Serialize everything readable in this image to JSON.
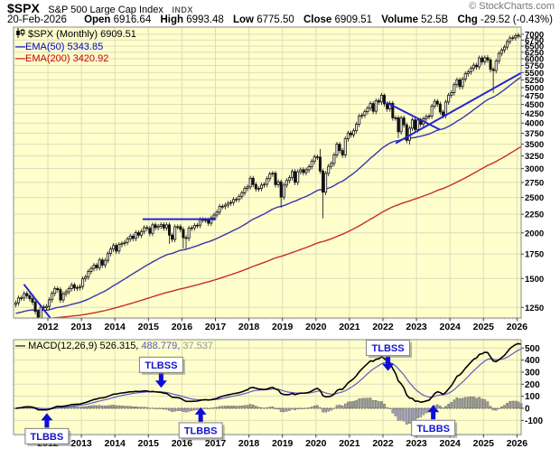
{
  "header": {
    "symbol": "$SPX",
    "name": "S&P 500 Large Cap Index",
    "exchange": "INDX",
    "credit": "© StockCharts.com",
    "quote": {
      "date": "20-Feb-2026",
      "open_label": "Open",
      "open": "6916.64",
      "high_label": "High",
      "high": "6993.48",
      "low_label": "Low",
      "low": "6775.50",
      "close_label": "Close",
      "close": "6909.51",
      "volume_label": "Volume",
      "volume": "52.5B",
      "chg_label": "Chg",
      "chg": "-29.52 (-0.43%)",
      "chg_arrow": "▼"
    }
  },
  "main_legend": {
    "symbol_line": "$SPX (Monthly) 6909.51",
    "ema50": "EMA(50) 5343.85",
    "ema200": "EMA(200) 3420.92"
  },
  "macd_legend": {
    "dash": "—",
    "name": "MACD(12,26,9)",
    "macd_value": "526.315,",
    "signal_value": "488.779,",
    "hist_value": "37.537"
  },
  "colors": {
    "plot_bg": "#ffffcc",
    "grid": "#dcdcbb",
    "border": "#8a8a8a",
    "candle": "#111111",
    "up_fill": "#ffffff",
    "down_fill": "#111111",
    "ema50": "#3636b0",
    "ema200": "#cc2b2b",
    "trendline": "#2424d6",
    "macd_line": "#000000",
    "signal_line": "#5b5bc8",
    "hist_pos": "#9a9a9a",
    "hist_neg": "#a2a2c2",
    "hist_stroke": "#5a5a5a",
    "annotation": "#0d0dd9",
    "annotation_text": "#1515cc",
    "axis_text": "#000000"
  },
  "chart_data": {
    "type": "candlestick",
    "title": "$SPX Monthly with EMA(50), EMA(200), trendlines and MACD(12,26,9) panel",
    "price_log_scale": true,
    "x_ticks": [
      2012,
      2013,
      2014,
      2015,
      2016,
      2017,
      2018,
      2019,
      2020,
      2021,
      2022,
      2023,
      2024,
      2025,
      2026
    ],
    "price_axis_ticks": [
      7000,
      6750,
      6500,
      6250,
      6000,
      5750,
      5500,
      5250,
      5000,
      4750,
      4500,
      4250,
      4000,
      3750,
      3500,
      3250,
      3000,
      2750,
      2500,
      2250,
      2000,
      1750,
      1500,
      1250
    ],
    "macd_axis_ticks": [
      500,
      400,
      300,
      200,
      100,
      0,
      -100
    ],
    "start_year": 2011,
    "monthly_close": [
      1286,
      1327,
      1326,
      1364,
      1345,
      1321,
      1292,
      1219,
      1131,
      1253,
      1247,
      1258,
      1312,
      1366,
      1408,
      1398,
      1310,
      1362,
      1379,
      1407,
      1441,
      1412,
      1416,
      1426,
      1498,
      1515,
      1569,
      1598,
      1631,
      1606,
      1686,
      1633,
      1682,
      1757,
      1806,
      1848,
      1783,
      1859,
      1872,
      1884,
      1924,
      1960,
      1931,
      2003,
      1972,
      2018,
      2068,
      2059,
      1995,
      2105,
      2068,
      2086,
      2107,
      2063,
      2104,
      1972,
      1920,
      2079,
      2080,
      2044,
      1940,
      1932,
      2060,
      2065,
      2097,
      2099,
      2174,
      2171,
      2168,
      2126,
      2199,
      2239,
      2279,
      2364,
      2363,
      2384,
      2412,
      2423,
      2470,
      2472,
      2519,
      2575,
      2648,
      2674,
      2824,
      2714,
      2641,
      2648,
      2705,
      2718,
      2816,
      2902,
      2914,
      2712,
      2760,
      2507,
      2704,
      2784,
      2834,
      2946,
      2752,
      2942,
      2980,
      2926,
      2977,
      3038,
      3141,
      3231,
      3226,
      2954,
      2585,
      2912,
      3044,
      3100,
      3271,
      3500,
      3363,
      3270,
      3622,
      3756,
      3714,
      3811,
      3973,
      4181,
      4204,
      4298,
      4395,
      4523,
      4308,
      4605,
      4567,
      4766,
      4516,
      4374,
      4530,
      4132,
      4132,
      3785,
      4130,
      3955,
      3586,
      3872,
      4080,
      3840,
      4077,
      3970,
      4109,
      4169,
      4180,
      4450,
      4589,
      4508,
      4288,
      4194,
      4568,
      4770,
      4846,
      5096,
      5254,
      5036,
      5278,
      5460,
      5522,
      5648,
      5762,
      5705,
      6032,
      5882,
      6041,
      5955,
      5612,
      5569,
      5912,
      6205,
      6340,
      6460,
      6688,
      6840,
      6849,
      6940,
      6960,
      6909.51
    ],
    "low_overrides": {
      "8": 1075,
      "9": 1074,
      "55": 1867,
      "60": 1812,
      "61": 1810,
      "95": 2347,
      "110": 2192,
      "137": 3637,
      "141": 3491,
      "171": 4835,
      "181": 6775.5
    },
    "high_overrides": {
      "109": 3394,
      "132": 4819,
      "169": 6147,
      "181": 6993.48
    },
    "last_candle": {
      "open": 6916.64,
      "high": 6993.48,
      "low": 6775.5,
      "close": 6909.51
    },
    "ema_overlays": [
      {
        "period": 50,
        "seed": 1200,
        "last_value": 5343.85
      },
      {
        "period": 200,
        "seed": 1150,
        "last_value": 3420.92
      }
    ],
    "macd_params": {
      "fast": 12,
      "slow": 26,
      "signal": 9,
      "last_macd": 526.315,
      "last_signal": 488.779,
      "last_hist": 37.537
    },
    "trendlines": [
      {
        "x1": 2011.3,
        "p1": 1440,
        "x2": 2012.07,
        "p2": 1170
      },
      {
        "x1": 2014.85,
        "p1": 2180,
        "x2": 2017.0,
        "p2": 2180
      },
      {
        "x1": 2022.13,
        "p1": 4540,
        "x2": 2023.67,
        "p2": 3848
      },
      {
        "x1": 2022.4,
        "p1": 3530,
        "x2": 2026.11,
        "p2": 5480
      }
    ],
    "annotations": [
      {
        "label": "TLBBS",
        "dir": "up",
        "year": 2011.97,
        "value": -40
      },
      {
        "label": "TLBSS",
        "dir": "down",
        "year": 2015.38,
        "value": 170
      },
      {
        "label": "TLBBS",
        "dir": "up",
        "year": 2016.56,
        "value": 8
      },
      {
        "label": "TLBSS",
        "dir": "down",
        "year": 2022.15,
        "value": 310
      },
      {
        "label": "TLBBS",
        "dir": "up",
        "year": 2023.5,
        "value": 28
      }
    ]
  }
}
